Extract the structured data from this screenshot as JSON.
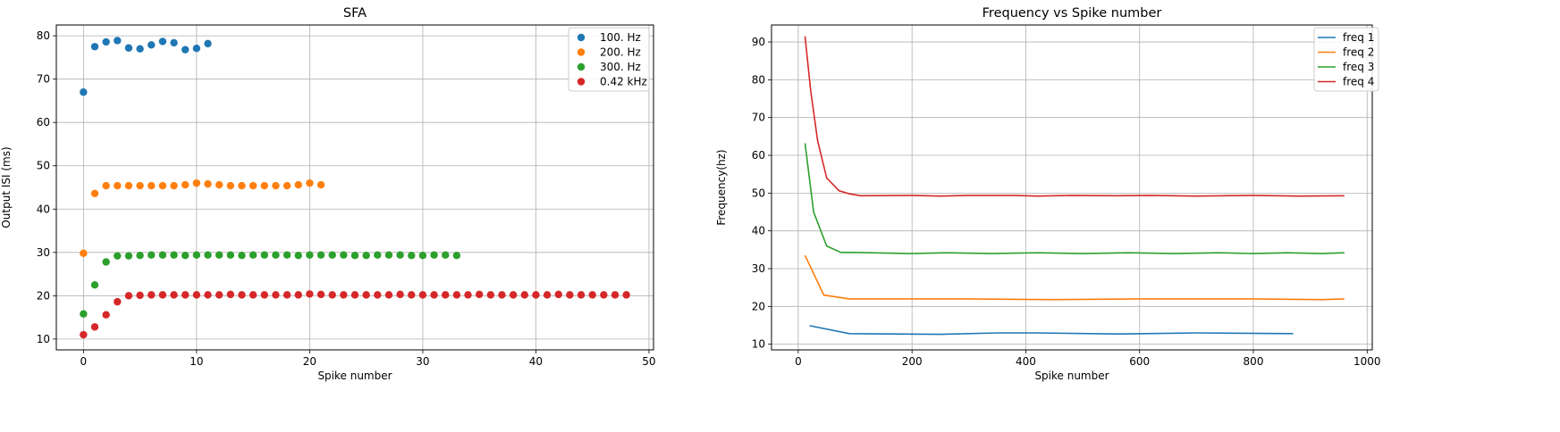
{
  "chart_data": [
    {
      "type": "scatter",
      "title": "SFA",
      "xlabel": "Spike number",
      "ylabel": "Output ISI (ms)",
      "xlim": [
        -2.4,
        50.4
      ],
      "ylim": [
        7.5,
        82.5
      ],
      "xticks": [
        0,
        10,
        20,
        30,
        40,
        50
      ],
      "yticks": [
        10,
        20,
        30,
        40,
        50,
        60,
        70,
        80
      ],
      "grid": true,
      "legend_position": "top-right",
      "series": [
        {
          "name": "100. Hz",
          "color": "#1f77b4",
          "y": [
            67.0,
            77.5,
            78.6,
            78.9,
            77.2,
            77.0,
            77.9,
            78.7,
            78.4,
            76.8,
            77.1,
            78.2
          ]
        },
        {
          "name": "200. Hz",
          "color": "#ff7f0e",
          "y": [
            29.8,
            43.6,
            45.4,
            45.4,
            45.4,
            45.4,
            45.4,
            45.4,
            45.4,
            45.6,
            46.0,
            45.8,
            45.6,
            45.4,
            45.4,
            45.4,
            45.4,
            45.4,
            45.4,
            45.6,
            46.0,
            45.6
          ]
        },
        {
          "name": "300. Hz",
          "color": "#2ca02c",
          "y": [
            15.8,
            22.5,
            27.8,
            29.2,
            29.2,
            29.3,
            29.4,
            29.4,
            29.4,
            29.3,
            29.4,
            29.4,
            29.4,
            29.4,
            29.3,
            29.4,
            29.4,
            29.4,
            29.4,
            29.3,
            29.4,
            29.4,
            29.4,
            29.4,
            29.3,
            29.3,
            29.4,
            29.4,
            29.4,
            29.3,
            29.3,
            29.4,
            29.4,
            29.3
          ]
        },
        {
          "name": "0.42 kHz",
          "color": "#d62728",
          "y": [
            11.0,
            12.8,
            15.6,
            18.6,
            20.0,
            20.1,
            20.2,
            20.2,
            20.2,
            20.2,
            20.2,
            20.2,
            20.2,
            20.3,
            20.2,
            20.2,
            20.2,
            20.2,
            20.2,
            20.2,
            20.4,
            20.3,
            20.2,
            20.2,
            20.2,
            20.2,
            20.2,
            20.2,
            20.3,
            20.2,
            20.2,
            20.2,
            20.2,
            20.2,
            20.2,
            20.3,
            20.2,
            20.2,
            20.2,
            20.2,
            20.2,
            20.2,
            20.3,
            20.2,
            20.2,
            20.2,
            20.2,
            20.2,
            20.2
          ]
        }
      ]
    },
    {
      "type": "line",
      "title": "Frequency vs Spike number",
      "xlabel": "Spike number",
      "ylabel": "Frequency(hz)",
      "xlim": [
        -47,
        1009
      ],
      "ylim": [
        8.5,
        94.5
      ],
      "xticks": [
        0,
        200,
        400,
        600,
        800,
        1000
      ],
      "yticks": [
        10,
        20,
        30,
        40,
        50,
        60,
        70,
        80,
        90
      ],
      "grid": true,
      "legend_position": "top-right",
      "series": [
        {
          "name": "freq 1",
          "color": "#1f77b4",
          "x": [
            20,
            90,
            250,
            350,
            420,
            560,
            700,
            870
          ],
          "y": [
            14.9,
            12.8,
            12.6,
            13.0,
            13.0,
            12.7,
            13.0,
            12.8
          ]
        },
        {
          "name": "freq 2",
          "color": "#ff7f0e",
          "x": [
            12,
            45,
            90,
            300,
            450,
            600,
            800,
            920,
            960
          ],
          "y": [
            33.5,
            23.0,
            22.0,
            22.0,
            21.8,
            22.0,
            22.0,
            21.8,
            22.0
          ]
        },
        {
          "name": "freq 3",
          "color": "#2ca02c",
          "x": [
            12,
            27,
            50,
            75,
            100,
            200,
            260,
            340,
            420,
            500,
            580,
            660,
            740,
            800,
            860,
            920,
            960
          ],
          "y": [
            63.2,
            45.0,
            36.0,
            34.3,
            34.3,
            34.0,
            34.2,
            34.0,
            34.2,
            34.0,
            34.2,
            34.0,
            34.2,
            34.0,
            34.2,
            34.0,
            34.2
          ]
        },
        {
          "name": "freq 4",
          "color": "#d62728",
          "x": [
            12,
            22,
            34,
            50,
            72,
            90,
            110,
            200,
            250,
            300,
            380,
            420,
            480,
            560,
            620,
            700,
            800,
            880,
            960
          ],
          "y": [
            91.5,
            77.0,
            64.0,
            54.0,
            50.6,
            49.8,
            49.3,
            49.4,
            49.2,
            49.4,
            49.4,
            49.2,
            49.4,
            49.3,
            49.4,
            49.2,
            49.4,
            49.2,
            49.3
          ]
        }
      ]
    }
  ]
}
